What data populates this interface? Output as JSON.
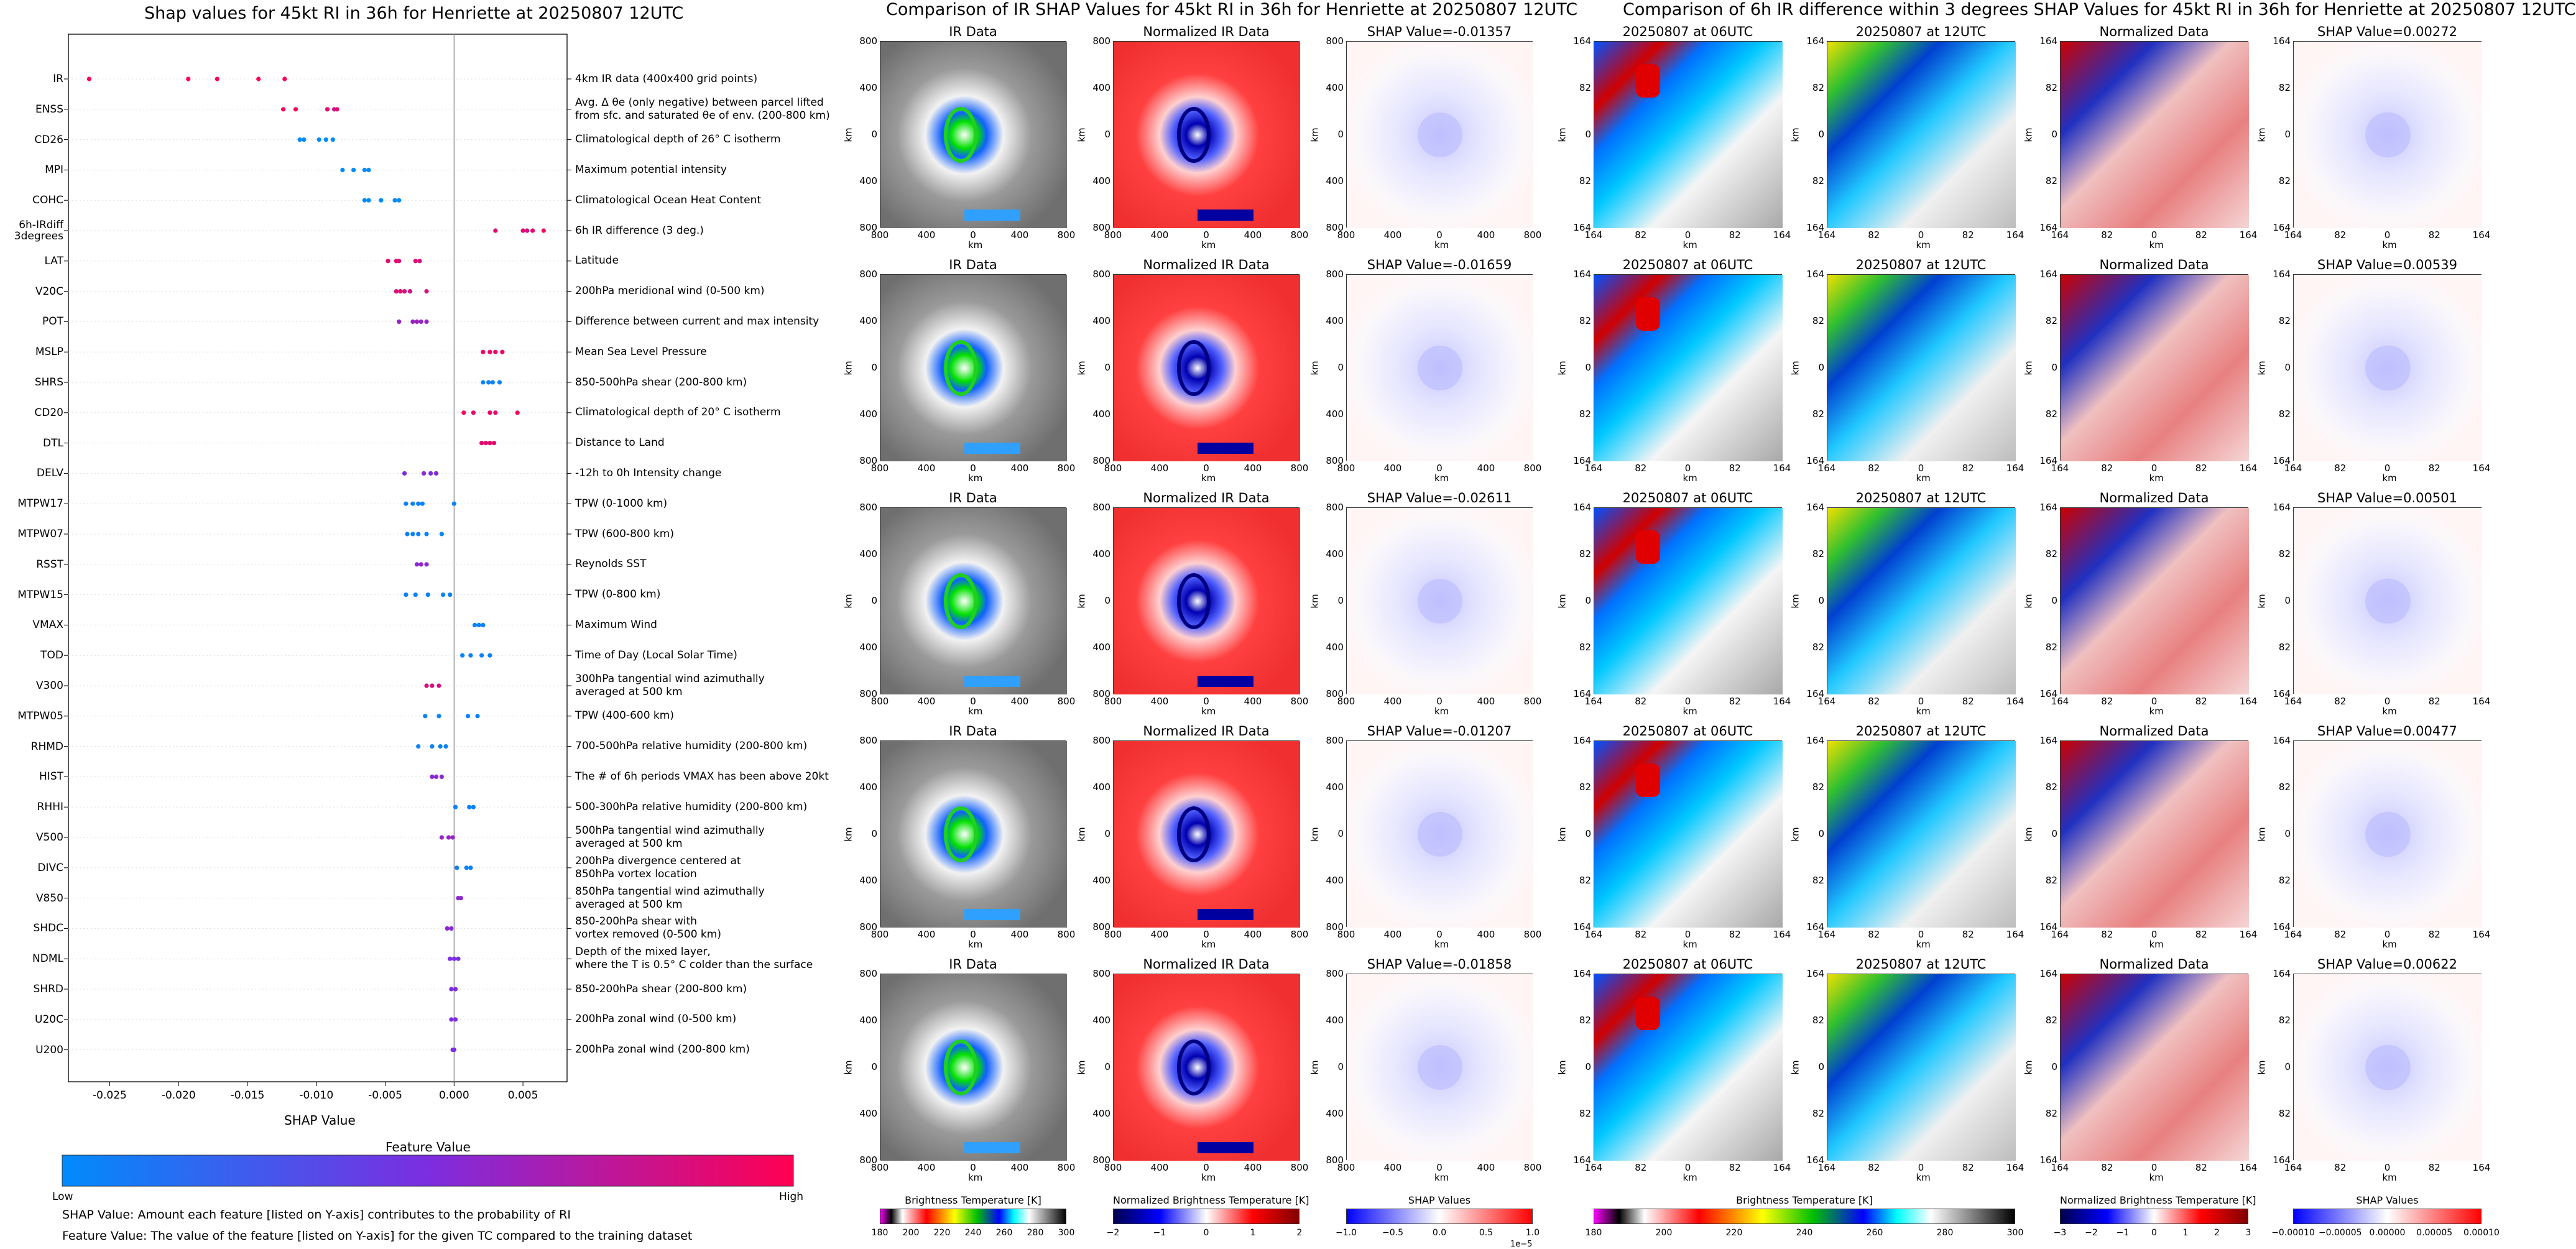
{
  "chart_data": [
    {
      "type": "scatter",
      "title": "Shap values for 45kt RI in 36h for Henriette at 20250807 12UTC",
      "xlabel": "SHAP Value",
      "xlim": [
        -0.028,
        0.0082
      ],
      "xticks": [
        "-0.025",
        "-0.020",
        "-0.015",
        "-0.010",
        "-0.005",
        "0.000",
        "0.005"
      ],
      "xtick_values": [
        -0.025,
        -0.02,
        -0.015,
        -0.01,
        -0.005,
        0.0,
        0.005
      ],
      "colorbar": {
        "title": "Feature Value",
        "low_label": "Low",
        "high_label": "High",
        "colors": [
          "#008bfb",
          "#7c2de0",
          "#ff0052"
        ]
      },
      "features": [
        {
          "name": "IR",
          "desc": [
            "4km IR data (400x400 grid points)"
          ],
          "values": [
            -0.0265,
            -0.0193,
            -0.0172,
            -0.0142,
            -0.0123
          ],
          "levels": [
            1,
            1,
            1,
            1,
            1
          ]
        },
        {
          "name": "ENSS",
          "desc": [
            "Avg. Δ θe (only negative) between parcel lifted",
            "from sfc. and saturated θe of env. (200-800 km)"
          ],
          "values": [
            -0.0124,
            -0.0115,
            -0.0092,
            -0.0087,
            -0.0085
          ],
          "levels": [
            1,
            1,
            0.9,
            0.8,
            0.9
          ]
        },
        {
          "name": "CD26",
          "desc": [
            "Climatological depth of 26° C isotherm"
          ],
          "values": [
            -0.0112,
            -0.0109,
            -0.0098,
            -0.0093,
            -0.0088
          ],
          "levels": [
            0,
            0,
            0,
            0,
            0
          ]
        },
        {
          "name": "MPI",
          "desc": [
            "Maximum potential intensity"
          ],
          "values": [
            -0.0081,
            -0.0073,
            -0.0065,
            -0.0062
          ],
          "levels": [
            0,
            0,
            0,
            0
          ]
        },
        {
          "name": "COHC",
          "desc": [
            "Climatological Ocean Heat Content"
          ],
          "values": [
            -0.0065,
            -0.0062,
            -0.0053,
            -0.0043,
            -0.004
          ],
          "levels": [
            0,
            0,
            0,
            0,
            0
          ]
        },
        {
          "name": "6h-IRdiff\n3degrees",
          "desc": [
            "6h IR difference (3 deg.)"
          ],
          "values": [
            0.003,
            0.005,
            0.0053,
            0.0057,
            0.0065
          ],
          "levels": [
            0.9,
            0.9,
            0.85,
            0.9,
            0.95
          ]
        },
        {
          "name": "LAT",
          "desc": [
            "Latitude"
          ],
          "values": [
            -0.0048,
            -0.0042,
            -0.004,
            -0.0028,
            -0.0025
          ],
          "levels": [
            0.9,
            0.9,
            0.85,
            0.9,
            0.85
          ]
        },
        {
          "name": "V20C",
          "desc": [
            "200hPa meridional wind (0-500 km)"
          ],
          "values": [
            -0.0042,
            -0.0039,
            -0.0036,
            -0.0032,
            -0.002
          ],
          "levels": [
            0.85,
            0.9,
            0.85,
            0.8,
            0.85
          ]
        },
        {
          "name": "POT",
          "desc": [
            "Difference between current and max intensity"
          ],
          "values": [
            -0.004,
            -0.003,
            -0.0027,
            -0.0024,
            -0.002
          ],
          "levels": [
            0.6,
            0.6,
            0.65,
            0.6,
            0.6
          ]
        },
        {
          "name": "MSLP",
          "desc": [
            "Mean Sea Level Pressure"
          ],
          "values": [
            0.0021,
            0.0026,
            0.003,
            0.0035
          ],
          "levels": [
            0.9,
            0.95,
            0.9,
            0.95
          ]
        },
        {
          "name": "SHRS",
          "desc": [
            "850-500hPa shear (200-800 km)"
          ],
          "values": [
            0.0021,
            0.0025,
            0.0028,
            0.0033
          ],
          "levels": [
            0.05,
            0.05,
            0.05,
            0.05
          ]
        },
        {
          "name": "CD20",
          "desc": [
            "Climatological depth of 20° C isotherm"
          ],
          "values": [
            0.0007,
            0.0014,
            0.0026,
            0.003,
            0.0046
          ],
          "levels": [
            0.95,
            0.9,
            0.95,
            0.9,
            0.95
          ]
        },
        {
          "name": "DTL",
          "desc": [
            "Distance to Land"
          ],
          "values": [
            0.002,
            0.0023,
            0.0026,
            0.0029
          ],
          "levels": [
            0.9,
            0.9,
            0.9,
            0.9
          ]
        },
        {
          "name": "DELV",
          "desc": [
            "-12h to 0h Intensity change"
          ],
          "values": [
            -0.0036,
            -0.0022,
            -0.0017,
            -0.0013
          ],
          "levels": [
            0.5,
            0.55,
            0.5,
            0.55
          ]
        },
        {
          "name": "MTPW17",
          "desc": [
            "TPW (0-1000 km)"
          ],
          "values": [
            -0.0035,
            -0.003,
            -0.0026,
            -0.0023,
            0.0
          ],
          "levels": [
            0.05,
            0.05,
            0.05,
            0.05,
            0.05
          ]
        },
        {
          "name": "MTPW07",
          "desc": [
            "TPW (600-800 km)"
          ],
          "values": [
            -0.0034,
            -0.003,
            -0.0026,
            -0.002,
            -0.0009
          ],
          "levels": [
            0.05,
            0.05,
            0.05,
            0.05,
            0.05
          ]
        },
        {
          "name": "RSST",
          "desc": [
            "Reynolds SST"
          ],
          "values": [
            -0.0027,
            -0.0024,
            -0.002
          ],
          "levels": [
            0.55,
            0.6,
            0.55
          ]
        },
        {
          "name": "MTPW15",
          "desc": [
            "TPW (0-800 km)"
          ],
          "values": [
            -0.0035,
            -0.0028,
            -0.0019,
            -0.0008,
            -0.0003
          ],
          "levels": [
            0.05,
            0.05,
            0.05,
            0.05,
            0.05
          ]
        },
        {
          "name": "VMAX",
          "desc": [
            "Maximum Wind"
          ],
          "values": [
            0.0015,
            0.0018,
            0.0021
          ],
          "levels": [
            0.05,
            0.05,
            0.05
          ]
        },
        {
          "name": "TOD",
          "desc": [
            "Time of Day (Local Solar Time)"
          ],
          "values": [
            0.0006,
            0.0012,
            0.002,
            0.0026
          ],
          "levels": [
            0.05,
            0.05,
            0.05,
            0.05
          ]
        },
        {
          "name": "V300",
          "desc": [
            "300hPa tangential wind azimuthally",
            "averaged at 500 km"
          ],
          "values": [
            -0.002,
            -0.0016,
            -0.0011
          ],
          "levels": [
            0.85,
            0.85,
            0.85
          ]
        },
        {
          "name": "MTPW05",
          "desc": [
            "TPW (400-600 km)"
          ],
          "values": [
            -0.0021,
            -0.0011,
            0.001,
            0.0017
          ],
          "levels": [
            0.05,
            0.05,
            0.05,
            0.05
          ]
        },
        {
          "name": "RHMD",
          "desc": [
            "700-500hPa relative humidity (200-800 km)"
          ],
          "values": [
            -0.0026,
            -0.0016,
            -0.001,
            -0.0006
          ],
          "levels": [
            0.05,
            0.05,
            0.05,
            0.05
          ]
        },
        {
          "name": "HIST",
          "desc": [
            "The # of 6h periods VMAX has been above 20kt"
          ],
          "values": [
            -0.0016,
            -0.0013,
            -0.0009
          ],
          "levels": [
            0.55,
            0.55,
            0.55
          ]
        },
        {
          "name": "RHHI",
          "desc": [
            "500-300hPa relative humidity (200-800 km)"
          ],
          "values": [
            0.0001,
            0.0011,
            0.0014
          ],
          "levels": [
            0.05,
            0.05,
            0.05
          ]
        },
        {
          "name": "V500",
          "desc": [
            "500hPa tangential wind azimuthally",
            "averaged at 500 km"
          ],
          "values": [
            -0.0009,
            -0.0004,
            -0.0001
          ],
          "levels": [
            0.6,
            0.6,
            0.6
          ]
        },
        {
          "name": "DIVC",
          "desc": [
            "200hPa divergence centered at",
            "850hPa vortex location"
          ],
          "values": [
            0.0002,
            0.0009,
            0.0012
          ],
          "levels": [
            0.05,
            0.05,
            0.05
          ]
        },
        {
          "name": "V850",
          "desc": [
            "850hPa tangential wind azimuthally",
            "averaged at 500 km"
          ],
          "values": [
            0.0003,
            0.0005
          ],
          "levels": [
            0.55,
            0.55
          ]
        },
        {
          "name": "SHDC",
          "desc": [
            "850-200hPa shear with",
            "vortex removed (0-500 km)"
          ],
          "values": [
            -0.0005,
            -0.0002
          ],
          "levels": [
            0.55,
            0.55
          ]
        },
        {
          "name": "NDML",
          "desc": [
            "Depth of the mixed layer,",
            "where the T is 0.5° C colder than the surface"
          ],
          "values": [
            -0.0003,
            0.0,
            0.0003
          ],
          "levels": [
            0.5,
            0.5,
            0.5
          ]
        },
        {
          "name": "SHRD",
          "desc": [
            "850-200hPa shear (200-800 km)"
          ],
          "values": [
            -0.0002,
            0.0001
          ],
          "levels": [
            0.5,
            0.5
          ]
        },
        {
          "name": "U20C",
          "desc": [
            "200hPa zonal wind (0-500 km)"
          ],
          "values": [
            -0.0002,
            0.0001
          ],
          "levels": [
            0.5,
            0.5
          ]
        },
        {
          "name": "U200",
          "desc": [
            "200hPa zonal wind (200-800 km)"
          ],
          "values": [
            -0.0001,
            0.0
          ],
          "levels": [
            0.5,
            0.5
          ]
        }
      ]
    },
    {
      "type": "heatmap",
      "title": "Comparison of IR SHAP Values for 45kt RI in 36h for Henriette at 20250807 12UTC",
      "columns": [
        "IR Data",
        "Normalized IR Data"
      ],
      "shap_titles": [
        "SHAP Value=-0.01357",
        "SHAP Value=-0.01659",
        "SHAP Value=-0.02611",
        "SHAP Value=-0.01207",
        "SHAP Value=-0.01858"
      ],
      "xticks": [
        "800",
        "400",
        "0",
        "400",
        "800"
      ],
      "yticks": [
        "800",
        "400",
        "0",
        "400",
        "800"
      ],
      "axis_label": "km",
      "colorbars": [
        {
          "title": "Brightness Temperature [K]",
          "ticks": [
            "180",
            "200",
            "220",
            "240",
            "260",
            "280",
            "300"
          ]
        },
        {
          "title": "Normalized Brightness Temperature [K]",
          "ticks": [
            "−2",
            "−1",
            "0",
            "1",
            "2"
          ]
        },
        {
          "title": "SHAP Values",
          "ticks": [
            "−1.0",
            "−0.5",
            "0.0",
            "0.5",
            "1.0"
          ],
          "offset": "1e−5"
        }
      ]
    },
    {
      "type": "heatmap",
      "title": "Comparison of 6h IR difference within 3 degrees SHAP Values for 45kt RI in 36h for Henriette at 20250807 12UTC",
      "columns": [
        "20250807 at 06UTC",
        "20250807 at 12UTC",
        "Normalized Data"
      ],
      "shap_titles": [
        "SHAP Value=0.00272",
        "SHAP Value=0.00539",
        "SHAP Value=0.00501",
        "SHAP Value=0.00477",
        "SHAP Value=0.00622"
      ],
      "xticks": [
        "164",
        "82",
        "0",
        "82",
        "164"
      ],
      "yticks": [
        "164",
        "82",
        "0",
        "82",
        "164"
      ],
      "axis_label": "km",
      "colorbars": [
        {
          "title": "Brightness Temperature [K]",
          "ticks": [
            "180",
            "200",
            "220",
            "240",
            "260",
            "280",
            "300"
          ]
        },
        {
          "title": "Normalized Brightness Temperature [K]",
          "ticks": [
            "−3",
            "−2",
            "−1",
            "0",
            "1",
            "2",
            "3"
          ]
        },
        {
          "title": "SHAP Values",
          "ticks": [
            "−0.00010",
            "−0.00005",
            "0.00000",
            "0.00005",
            "0.00010"
          ]
        }
      ]
    }
  ],
  "notes": [
    "SHAP Value: Amount each feature [listed on Y-axis] contributes to the probability of RI",
    "Feature Value: The value of the feature [listed on Y-axis] for the given TC compared to the training dataset"
  ]
}
